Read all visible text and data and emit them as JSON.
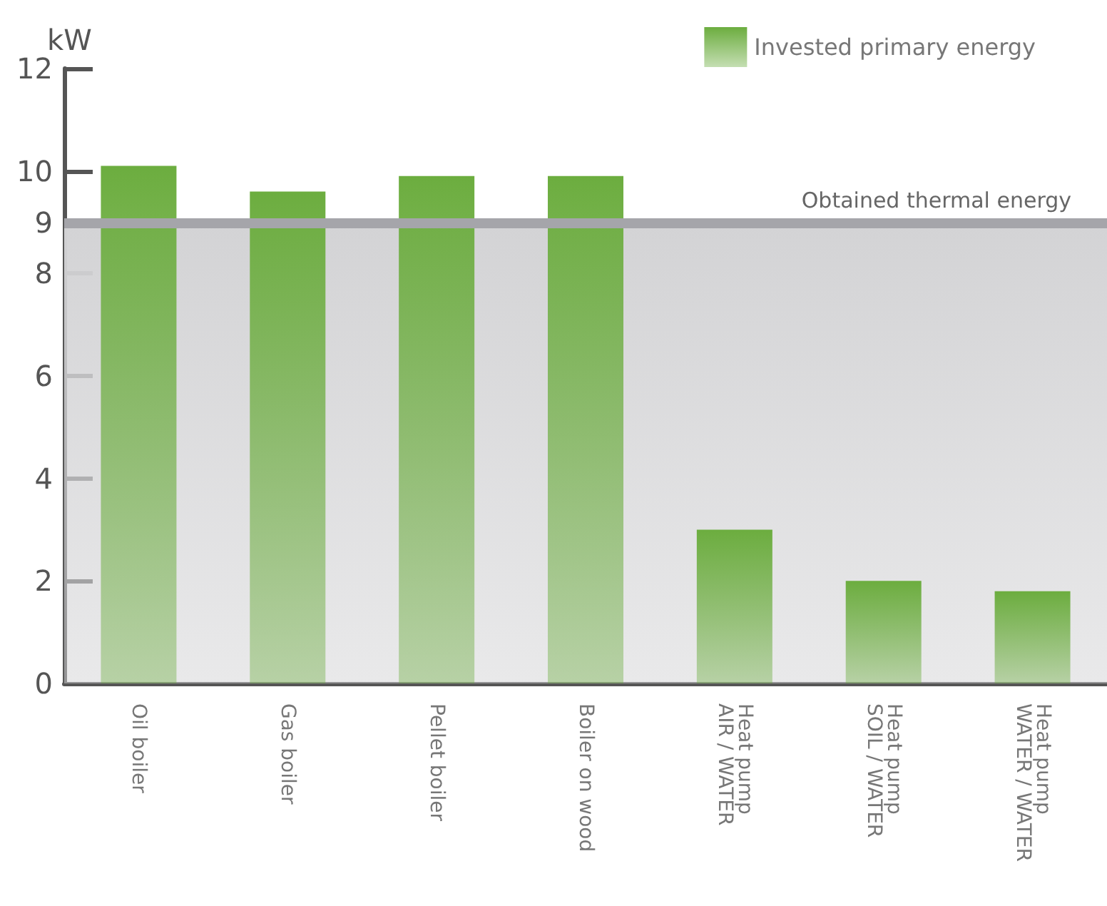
{
  "chart_data": {
    "type": "bar",
    "ylabel": "kW",
    "categories": [
      "Oil boiler",
      "Gas boiler",
      "Pellet boiler",
      "Boiler on wood",
      "Heat pump\nAIR / WATER",
      "Heat pump\nSOIL / WATER",
      "Heat pump\nWATER / WATER"
    ],
    "series": [
      {
        "name": "Invested primary energy",
        "color": "#6cad3f",
        "values": [
          10.1,
          9.6,
          9.9,
          9.9,
          3.0,
          2.0,
          1.8
        ]
      }
    ],
    "ylim": [
      0,
      12
    ],
    "yticks": [
      0,
      2,
      4,
      6,
      8,
      9,
      10,
      12
    ],
    "ref_lines": [
      {
        "axis": "y",
        "value": 9,
        "label": "Obtained thermal energy",
        "color": "#a5a5aa"
      }
    ],
    "bands": [
      {
        "axis": "y",
        "from": 0,
        "to": 9,
        "color": "#d3d3d5"
      }
    ],
    "grid": false,
    "legend": "top right"
  }
}
